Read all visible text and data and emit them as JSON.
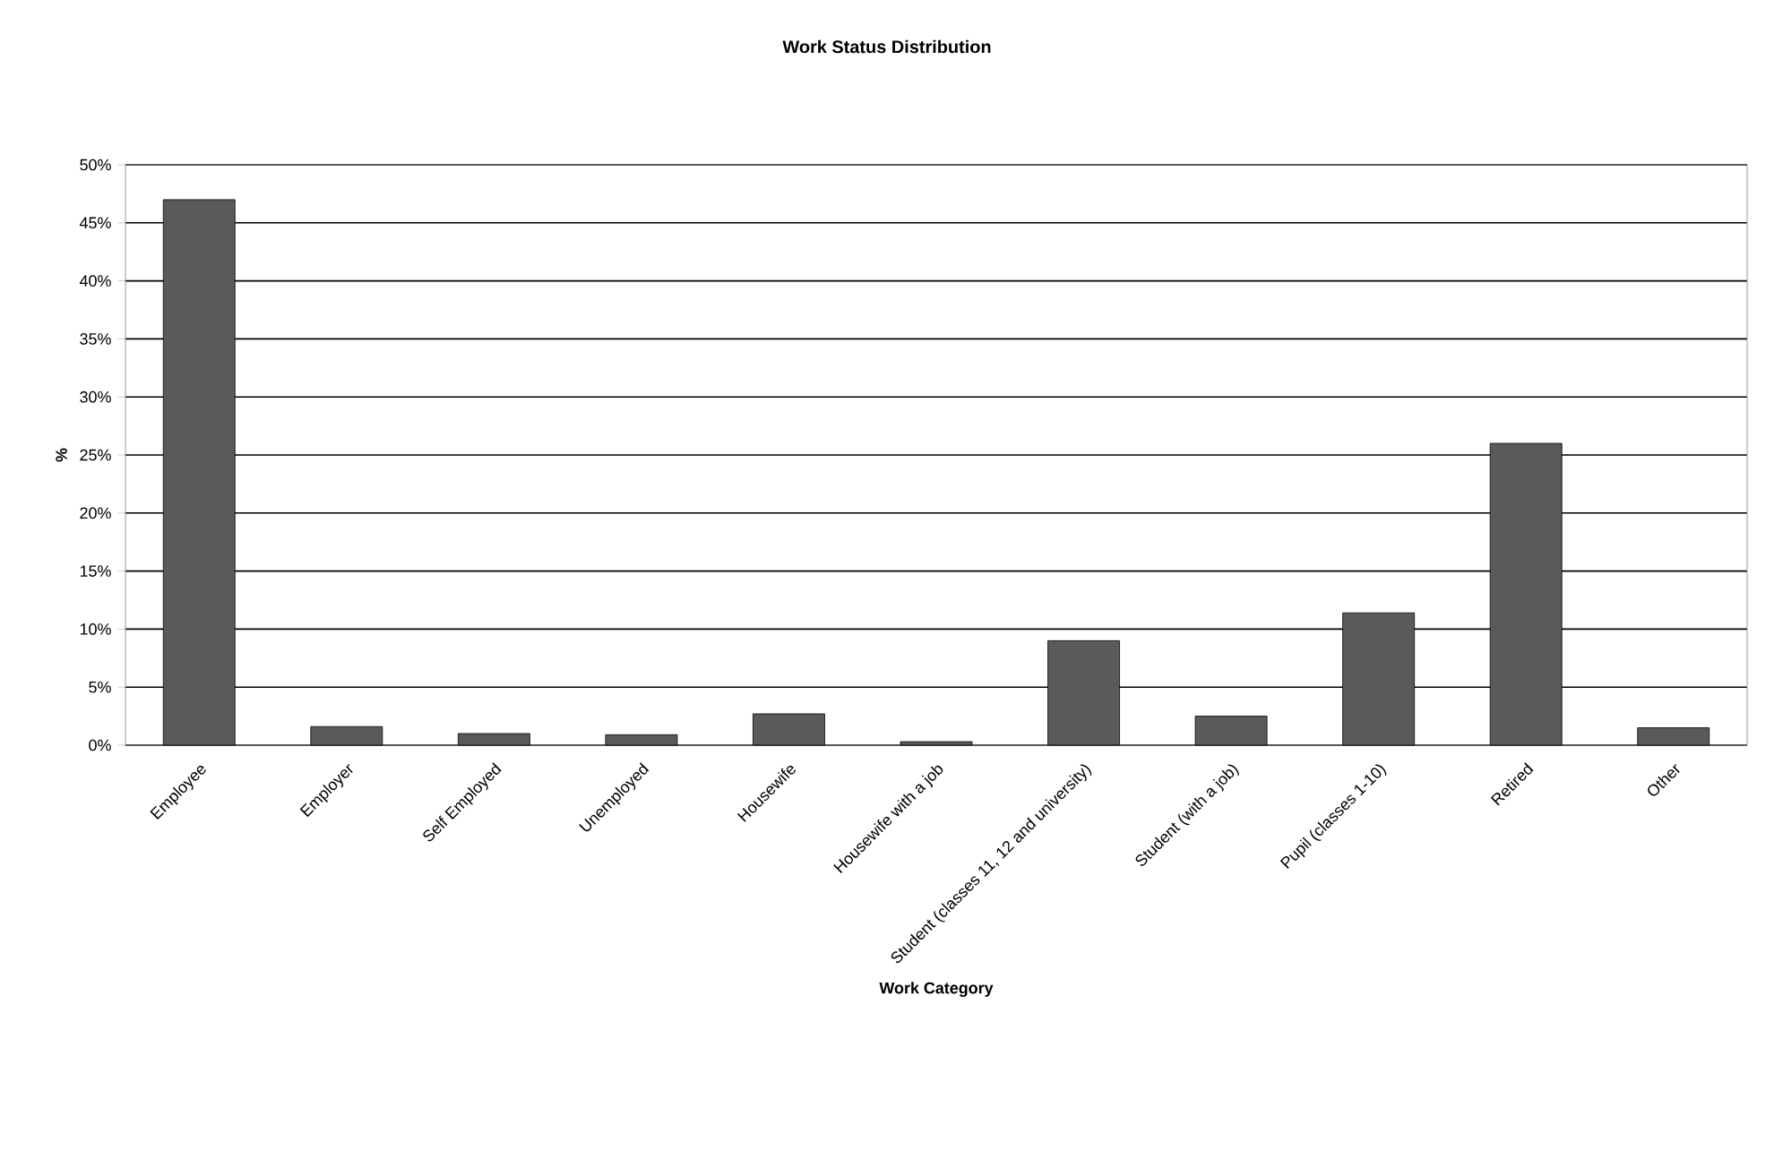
{
  "chart_data": {
    "type": "bar",
    "title": "Work Status Distribution",
    "xlabel": "Work Category",
    "ylabel": "%",
    "categories": [
      "Employee",
      "Employer",
      "Self Employed",
      "Unemployed",
      "Housewife",
      "Housewife with a job",
      "Student (classes 11, 12 and university)",
      "Student (with a job)",
      "Pupil (classes 1-10)",
      "Retired",
      "Other"
    ],
    "values": [
      47,
      1.6,
      1.0,
      0.9,
      2.7,
      0.3,
      9.0,
      2.5,
      11.4,
      26.0,
      1.5
    ],
    "color": "#5a5a5a",
    "ylim": [
      0,
      50
    ],
    "yticks": [
      {
        "value": 0,
        "label": "0%"
      },
      {
        "value": 5,
        "label": "5%"
      },
      {
        "value": 10,
        "label": "10%"
      },
      {
        "value": 15,
        "label": "15%"
      },
      {
        "value": 20,
        "label": "20%"
      },
      {
        "value": 25,
        "label": "25%"
      },
      {
        "value": 30,
        "label": "30%"
      },
      {
        "value": 35,
        "label": "35%"
      },
      {
        "value": 40,
        "label": "40%"
      },
      {
        "value": 45,
        "label": "45%"
      },
      {
        "value": 50,
        "label": "50%"
      }
    ],
    "grid": "y"
  }
}
